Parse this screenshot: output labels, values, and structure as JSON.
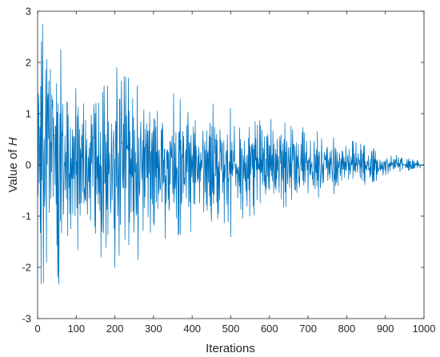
{
  "chart_data": {
    "type": "line",
    "title": "",
    "xlabel": "Iterations",
    "ylabel_prefix": "Value of ",
    "ylabel_var": "H",
    "xlim": [
      0,
      1000
    ],
    "ylim": [
      -3,
      3
    ],
    "x_ticks": [
      0,
      100,
      200,
      300,
      400,
      500,
      600,
      700,
      800,
      900,
      1000
    ],
    "x_tick_labels": [
      "0",
      "100",
      "200",
      "300",
      "400",
      "500",
      "600",
      "700",
      "800",
      "900",
      "1000"
    ],
    "y_ticks": [
      -3,
      -2,
      -1,
      0,
      1,
      2,
      3
    ],
    "y_tick_labels": [
      "-3",
      "-2",
      "-1",
      "0",
      "1",
      "2",
      "3"
    ],
    "grid": false,
    "legend": "none",
    "line_color": "#0072BD",
    "axis_color": "#262626",
    "series": [
      {
        "n_points": 1000,
        "envelope_points": [
          [
            0,
            1.6
          ],
          [
            15,
            2.8
          ],
          [
            50,
            2.2
          ],
          [
            100,
            1.8
          ],
          [
            200,
            1.8
          ],
          [
            300,
            1.5
          ],
          [
            400,
            1.3
          ],
          [
            500,
            1.1
          ],
          [
            600,
            0.9
          ],
          [
            700,
            0.7
          ],
          [
            800,
            0.5
          ],
          [
            900,
            0.25
          ],
          [
            1000,
            0.05
          ]
        ],
        "notable_points": [
          [
            13,
            2.75
          ],
          [
            15,
            -2.3
          ],
          [
            55,
            -2.33
          ],
          [
            60,
            2.25
          ],
          [
            200,
            -2.0
          ],
          [
            205,
            1.9
          ],
          [
            260,
            -1.85
          ],
          [
            450,
            -1.1
          ],
          [
            500,
            -1.4
          ],
          [
            700,
            -0.55
          ],
          [
            950,
            0.0
          ]
        ]
      }
    ]
  }
}
